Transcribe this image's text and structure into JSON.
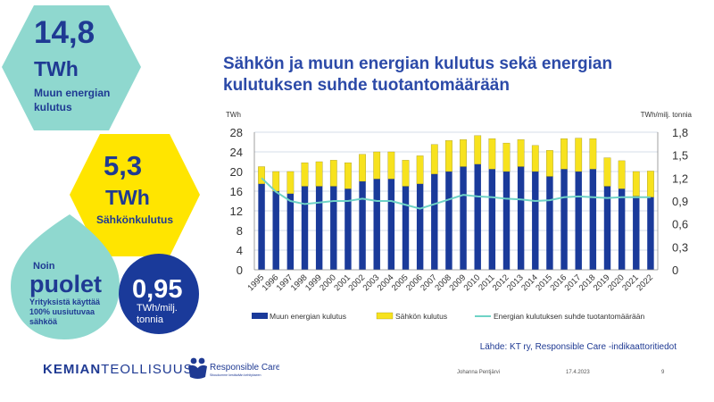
{
  "kpis": {
    "other_energy": {
      "value": "14,8",
      "unit": "TWh",
      "label": "Muun energian kulutus"
    },
    "electricity": {
      "value": "5,3",
      "unit": "TWh",
      "label": "Sähkönkulutus"
    },
    "renewable": {
      "prefix": "Noin",
      "big": "puolet",
      "text": "Yrityksistä käyttää 100% uusiutuvaa sähköä"
    },
    "ratio": {
      "value": "0,95",
      "unit": "TWh/milj. tonnia"
    }
  },
  "colors": {
    "teal": "#8fd8cf",
    "yellow": "#ffe500",
    "navy": "#1f3a93",
    "bar_navy": "#1a3a9a",
    "bar_yellow": "#f7e21e",
    "line_teal": "#6fd3c6",
    "grid": "#c8d0e0",
    "title_blue": "#2c4aa8"
  },
  "chart_data": {
    "type": "bar",
    "title": "Sähkön ja muun energian kulutus sekä energian kulutuksen suhde tuotantomäärään",
    "ylabel_left": "TWh",
    "ylabel_right": "TWh/milj. tonnia",
    "ylim": [
      0,
      28
    ],
    "yticks": [
      "0",
      "4",
      "8",
      "12",
      "16",
      "20",
      "24",
      "28"
    ],
    "ylim_right": [
      0,
      1.8
    ],
    "yticks_right": [
      "0",
      "0,3",
      "0,6",
      "0,9",
      "1,2",
      "1,5",
      "1,8"
    ],
    "categories": [
      "1995",
      "1996",
      "1997",
      "1998",
      "1999",
      "2000",
      "2001",
      "2002",
      "2003",
      "2004",
      "2005",
      "2006",
      "2007",
      "2008",
      "2009",
      "2010",
      "2011",
      "2012",
      "2013",
      "2014",
      "2015",
      "2016",
      "2017",
      "2018",
      "2019",
      "2020",
      "2021",
      "2022"
    ],
    "stacked": true,
    "series": [
      {
        "name": "Muun energian kulutus",
        "kind": "bar",
        "axis": "left",
        "color": "#1a3a9a",
        "values": [
          17.5,
          16,
          15.5,
          17,
          17,
          17,
          16.5,
          18,
          18.5,
          18.5,
          17,
          17.5,
          19.5,
          20,
          21,
          21.5,
          20.5,
          20,
          21,
          20,
          19,
          20.5,
          20,
          20.5,
          17,
          16.5,
          15,
          14.8
        ]
      },
      {
        "name": "Sähkön kulutus",
        "kind": "bar",
        "axis": "left",
        "color": "#f7e21e",
        "values": [
          3.5,
          4,
          4.5,
          4.8,
          5,
          5.3,
          5.3,
          5.5,
          5.5,
          5.5,
          5.3,
          5.7,
          6,
          6.3,
          5.5,
          5.8,
          6.2,
          5.8,
          5.5,
          5.3,
          5.3,
          6.2,
          6.8,
          6.2,
          5.8,
          5.7,
          5,
          5.3
        ]
      },
      {
        "name": "Energian kulutuksen suhde tuotantomäärään",
        "kind": "line",
        "axis": "right",
        "color": "#6fd3c6",
        "values": [
          1.2,
          1.02,
          0.9,
          0.86,
          0.88,
          0.9,
          0.9,
          0.93,
          0.9,
          0.9,
          0.85,
          0.8,
          0.86,
          0.92,
          0.98,
          0.96,
          0.95,
          0.93,
          0.92,
          0.9,
          0.91,
          0.95,
          0.96,
          0.95,
          0.94,
          0.95,
          0.95,
          0.95
        ]
      }
    ],
    "legend_position": "bottom",
    "grid": true
  },
  "source": "Lähde: KT ry, Responsible Care -indikaattoritiedot",
  "footer": {
    "brand_bold": "KEMIAN",
    "brand_rest": "TEOLLISUUS",
    "rc_name": "Responsible Care",
    "rc_sub": "Sitoudumme kestävään kehitykseen",
    "author": "Johanna Pentjärvi",
    "date": "17.4.2023",
    "page": "9"
  }
}
